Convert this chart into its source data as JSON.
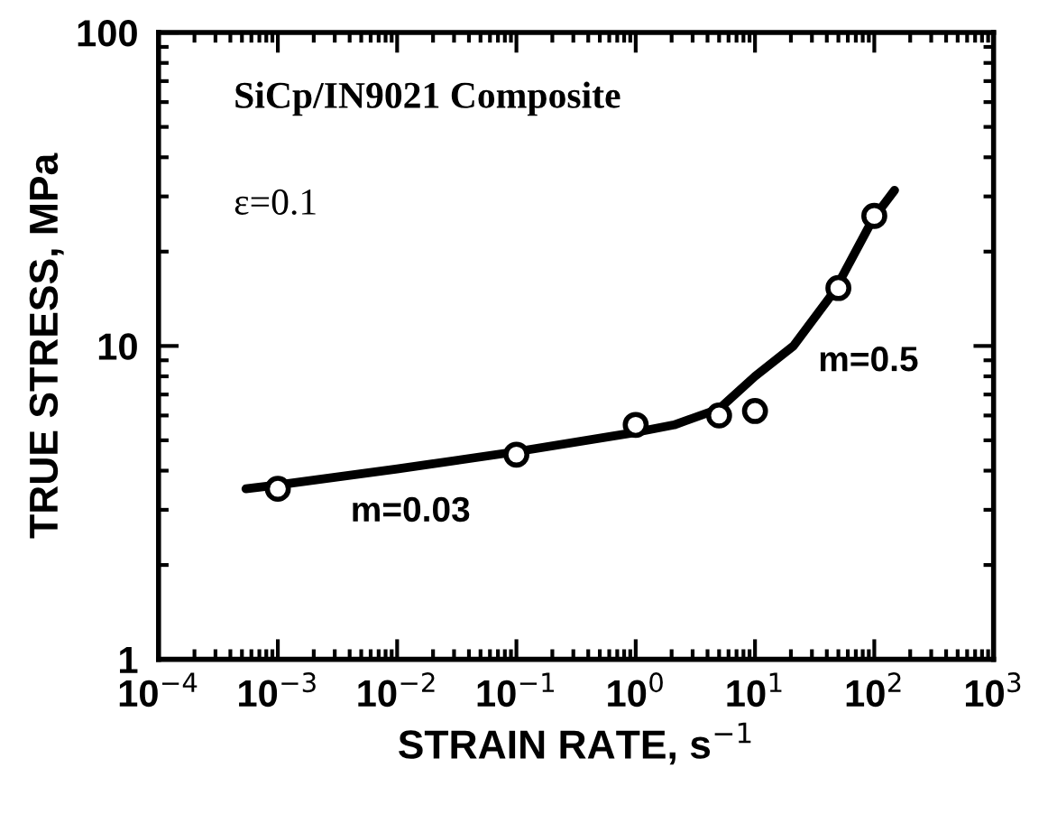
{
  "chart_data": {
    "type": "scatter",
    "xlabel": "STRAIN RATE, s$^{−1}$",
    "ylabel": "TRUE STRESS, MPa",
    "log": "xy",
    "xlim": [
      0.0001,
      1000
    ],
    "ylim": [
      1,
      100
    ],
    "xticks": [
      {
        "value": 0.0001,
        "label": "10$^{−4}$"
      },
      {
        "value": 0.001,
        "label": "10$^{−3}$"
      },
      {
        "value": 0.01,
        "label": "10$^{−2}$"
      },
      {
        "value": 0.1,
        "label": "10$^{−1}$"
      },
      {
        "value": 1,
        "label": "10$^{0}$"
      },
      {
        "value": 10,
        "label": "10$^{1}$"
      },
      {
        "value": 100,
        "label": "10$^{2}$"
      },
      {
        "value": 1000,
        "label": "10$^{3}$"
      }
    ],
    "yticks": [
      1,
      10,
      100
    ],
    "grid": false,
    "legend": false,
    "series": [
      {
        "marker": "circle",
        "color": "#000000",
        "x": [
          0.001,
          0.1,
          1,
          5,
          10,
          50,
          100
        ],
        "values": [
          3.5,
          4.5,
          5.6,
          6.0,
          6.2,
          15.3,
          26
        ]
      },
      {
        "type": "line",
        "marker": "none",
        "line_style": "solid",
        "color": "#000000",
        "x": [
          0.00054,
          0.001,
          0.01,
          0.1,
          1,
          2.1,
          5,
          10,
          21,
          46,
          98,
          148
        ],
        "values": [
          3.5,
          3.6,
          4.05,
          4.6,
          5.3,
          5.6,
          6.3,
          8.0,
          10,
          14.9,
          25.5,
          31.4
        ]
      }
    ],
    "annotations": [
      "SiCp/IN9021 Composite",
      "ε=0.1",
      "m=0.03",
      "m=0.5"
    ]
  }
}
